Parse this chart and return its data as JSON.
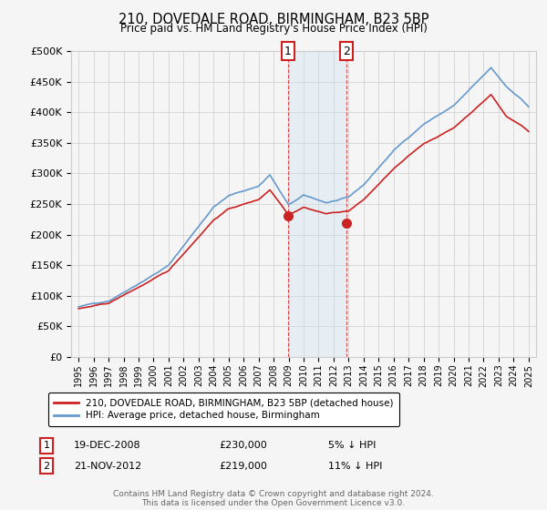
{
  "title": "210, DOVEDALE ROAD, BIRMINGHAM, B23 5BP",
  "subtitle": "Price paid vs. HM Land Registry's House Price Index (HPI)",
  "hpi_label": "HPI: Average price, detached house, Birmingham",
  "property_label": "210, DOVEDALE ROAD, BIRMINGHAM, B23 5BP (detached house)",
  "footer": "Contains HM Land Registry data © Crown copyright and database right 2024.\nThis data is licensed under the Open Government Licence v3.0.",
  "sale1_date": "19-DEC-2008",
  "sale1_price": 230000,
  "sale1_pct": "5% ↓ HPI",
  "sale2_date": "21-NOV-2012",
  "sale2_price": 219000,
  "sale2_pct": "11% ↓ HPI",
  "sale1_x": 2008.96,
  "sale2_x": 2012.88,
  "ylim": [
    0,
    500000
  ],
  "yticks": [
    0,
    50000,
    100000,
    150000,
    200000,
    250000,
    300000,
    350000,
    400000,
    450000,
    500000
  ],
  "hpi_color": "#6699cc",
  "property_color": "#cc2222",
  "background_color": "#f5f5f5",
  "plot_bg_color": "#f5f5f5",
  "grid_color": "#cccccc",
  "shade_color": "#cce0f0",
  "annotation_box_color": "#cc2222"
}
